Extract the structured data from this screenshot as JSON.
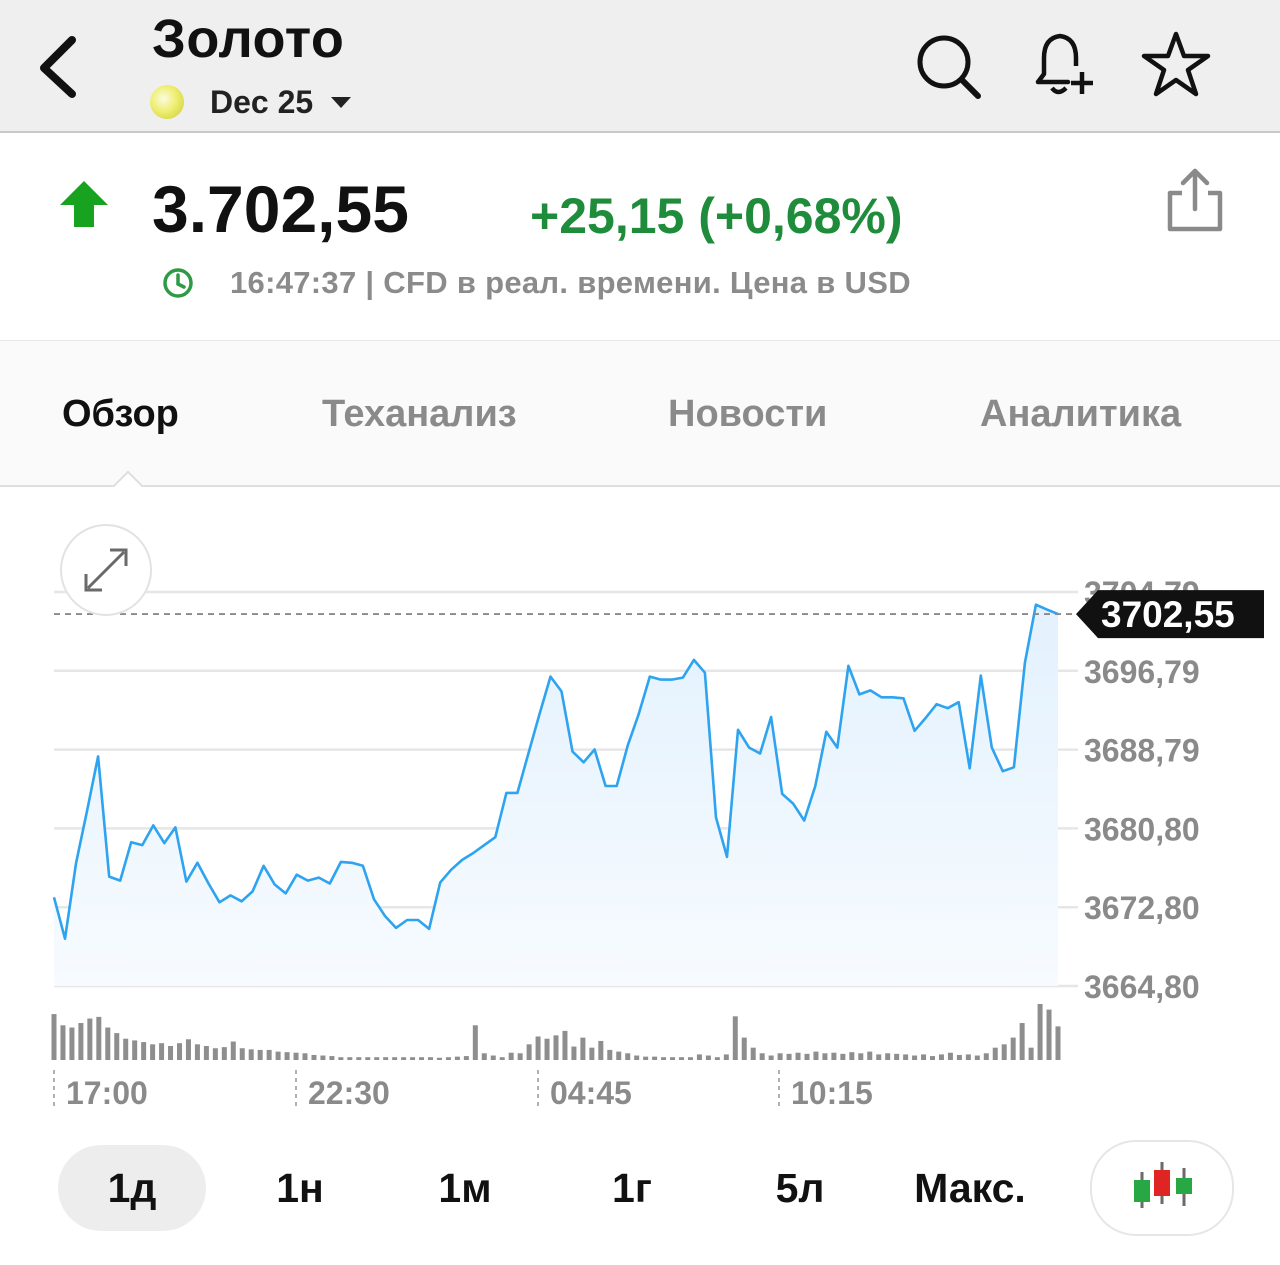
{
  "header": {
    "title": "Золото",
    "contract": "Dec 25",
    "icons": [
      "back-chevron-icon",
      "search-icon",
      "bell-plus-icon",
      "star-icon"
    ]
  },
  "quote": {
    "price": "3.702,55",
    "change": "+25,15 (+0,68%)",
    "direction": "up",
    "meta": "16:47:37 | CFD в реал. времени. Цена в USD",
    "colors": {
      "up": "#1e8c3a",
      "arrow": "#17a31f"
    }
  },
  "tabs": [
    {
      "label": "Обзор",
      "active": true
    },
    {
      "label": "Теханализ",
      "active": false
    },
    {
      "label": "Новости",
      "active": false
    },
    {
      "label": "Аналитика",
      "active": false
    }
  ],
  "chart_data": {
    "type": "area",
    "ytick_labels": [
      "3704,79",
      "3696,79",
      "3688,79",
      "3680,80",
      "3672,80",
      "3664,80"
    ],
    "ylim": [
      3664.8,
      3704.79
    ],
    "xtick_labels": [
      "17:00",
      "22:30",
      "04:45",
      "10:15"
    ],
    "last_price_label": "3702,55",
    "last_price": 3702.55,
    "line_color": "#2ea3ef",
    "series": [
      {
        "values": [
          3673.8,
          3669.6,
          3677.3,
          3682.6,
          3688.1,
          3675.9,
          3675.5,
          3679.4,
          3679.1,
          3681.1,
          3679.3,
          3680.9,
          3675.4,
          3677.3,
          3675.2,
          3673.3,
          3674.0,
          3673.4,
          3674.4,
          3677.0,
          3675.1,
          3674.2,
          3676.1,
          3675.5,
          3675.8,
          3675.2,
          3677.4,
          3677.3,
          3677.0,
          3673.6,
          3671.9,
          3670.7,
          3671.5,
          3671.5,
          3670.6,
          3675.3,
          3676.6,
          3677.6,
          3678.3,
          3679.1,
          3679.9,
          3684.4,
          3684.4,
          3688.4,
          3692.4,
          3696.2,
          3694.7,
          3688.6,
          3687.5,
          3688.8,
          3685.1,
          3685.1,
          3689.2,
          3692.4,
          3696.2,
          3695.9,
          3695.9,
          3696.1,
          3697.9,
          3696.6,
          3681.9,
          3677.9,
          3690.8,
          3689.0,
          3688.4,
          3692.1,
          3684.3,
          3683.3,
          3681.6,
          3685.1,
          3690.6,
          3689.0,
          3697.3,
          3694.4,
          3694.8,
          3694.1,
          3694.1,
          3694.0,
          3690.7,
          3692.0,
          3693.4,
          3693.0,
          3693.6,
          3686.9,
          3696.3,
          3689.0,
          3686.6,
          3687.0,
          3697.6,
          3703.5,
          3703.0,
          3702.55
        ]
      }
    ],
    "volume": [
      0.82,
      0.62,
      0.58,
      0.66,
      0.74,
      0.77,
      0.58,
      0.48,
      0.38,
      0.35,
      0.32,
      0.28,
      0.3,
      0.25,
      0.3,
      0.37,
      0.28,
      0.25,
      0.21,
      0.23,
      0.33,
      0.21,
      0.19,
      0.18,
      0.18,
      0.15,
      0.14,
      0.13,
      0.12,
      0.09,
      0.08,
      0.07,
      0.05,
      0.05,
      0.05,
      0.05,
      0.05,
      0.05,
      0.05,
      0.05,
      0.05,
      0.05,
      0.05,
      0.04,
      0.05,
      0.06,
      0.07,
      0.62,
      0.12,
      0.08,
      0.05,
      0.13,
      0.12,
      0.28,
      0.42,
      0.38,
      0.44,
      0.52,
      0.24,
      0.4,
      0.22,
      0.34,
      0.18,
      0.15,
      0.12,
      0.08,
      0.06,
      0.06,
      0.05,
      0.05,
      0.05,
      0.05,
      0.1,
      0.08,
      0.05,
      0.1,
      0.78,
      0.4,
      0.22,
      0.12,
      0.08,
      0.12,
      0.11,
      0.13,
      0.11,
      0.15,
      0.12,
      0.13,
      0.11,
      0.14,
      0.12,
      0.15,
      0.1,
      0.12,
      0.11,
      0.1,
      0.08,
      0.1,
      0.07,
      0.1,
      0.13,
      0.09,
      0.1,
      0.08,
      0.12,
      0.22,
      0.28,
      0.4,
      0.66,
      0.22,
      1.0,
      0.9,
      0.6
    ]
  },
  "periods": [
    {
      "label": "1д",
      "active": true
    },
    {
      "label": "1н",
      "active": false
    },
    {
      "label": "1м",
      "active": false
    },
    {
      "label": "1г",
      "active": false
    },
    {
      "label": "5л",
      "active": false
    },
    {
      "label": "Макс.",
      "active": false
    }
  ],
  "chart_type_icon": "candlestick-icon"
}
